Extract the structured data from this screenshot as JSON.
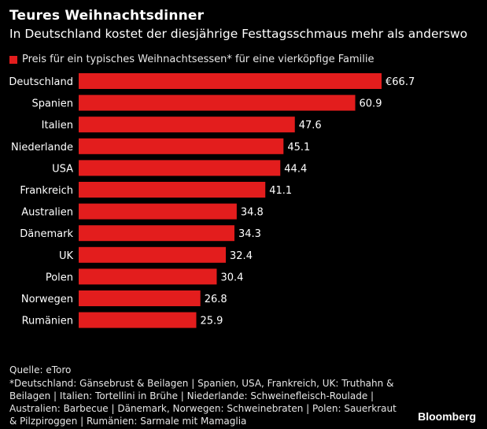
{
  "title": "Teures Weihnachtsdinner",
  "subtitle": "In Deutschland kostet der diesjährige Festtagsschmaus mehr als anderswo",
  "legend": {
    "label": "Preis für ein typisches Weihnachtsessen* für eine vierköpfige Familie",
    "color": "#e31d1d"
  },
  "chart_data": {
    "type": "bar",
    "orientation": "horizontal",
    "categories": [
      "Deutschland",
      "Spanien",
      "Italien",
      "Niederlande",
      "USA",
      "Frankreich",
      "Australien",
      "Dänemark",
      "UK",
      "Polen",
      "Norwegen",
      "Rumänien"
    ],
    "values": [
      66.7,
      60.9,
      47.6,
      45.1,
      44.4,
      41.1,
      34.8,
      34.3,
      32.4,
      30.4,
      26.8,
      25.9
    ],
    "value_labels": [
      "€66.7",
      "60.9",
      "47.6",
      "45.1",
      "44.4",
      "41.1",
      "34.8",
      "34.3",
      "32.4",
      "30.4",
      "26.8",
      "25.9"
    ],
    "series": [
      {
        "name": "Preis für ein typisches Weihnachtsessen* für eine vierköpfige Familie",
        "values": [
          66.7,
          60.9,
          47.6,
          45.1,
          44.4,
          41.1,
          34.8,
          34.3,
          32.4,
          30.4,
          26.8,
          25.9
        ]
      }
    ],
    "xlim": [
      0,
      66.7
    ],
    "grid": false,
    "legend_position": "top-left",
    "bar_color": "#e31d1d"
  },
  "source": "Quelle: eToro",
  "footnote": "*Deutschland: Gänsebrust & Beilagen | Spanien, USA, Frankreich, UK: Truthahn & Beilagen | Italien: Tortellini in Brühe | Niederlande: Schweinefleisch-Roulade | Australien: Barbecue | Dänemark, Norwegen: Schweinebraten | Polen: Sauerkraut & Pilzpiroggen | Rumänien: Sarmale mit Mamaglia",
  "brand": "Bloomberg"
}
